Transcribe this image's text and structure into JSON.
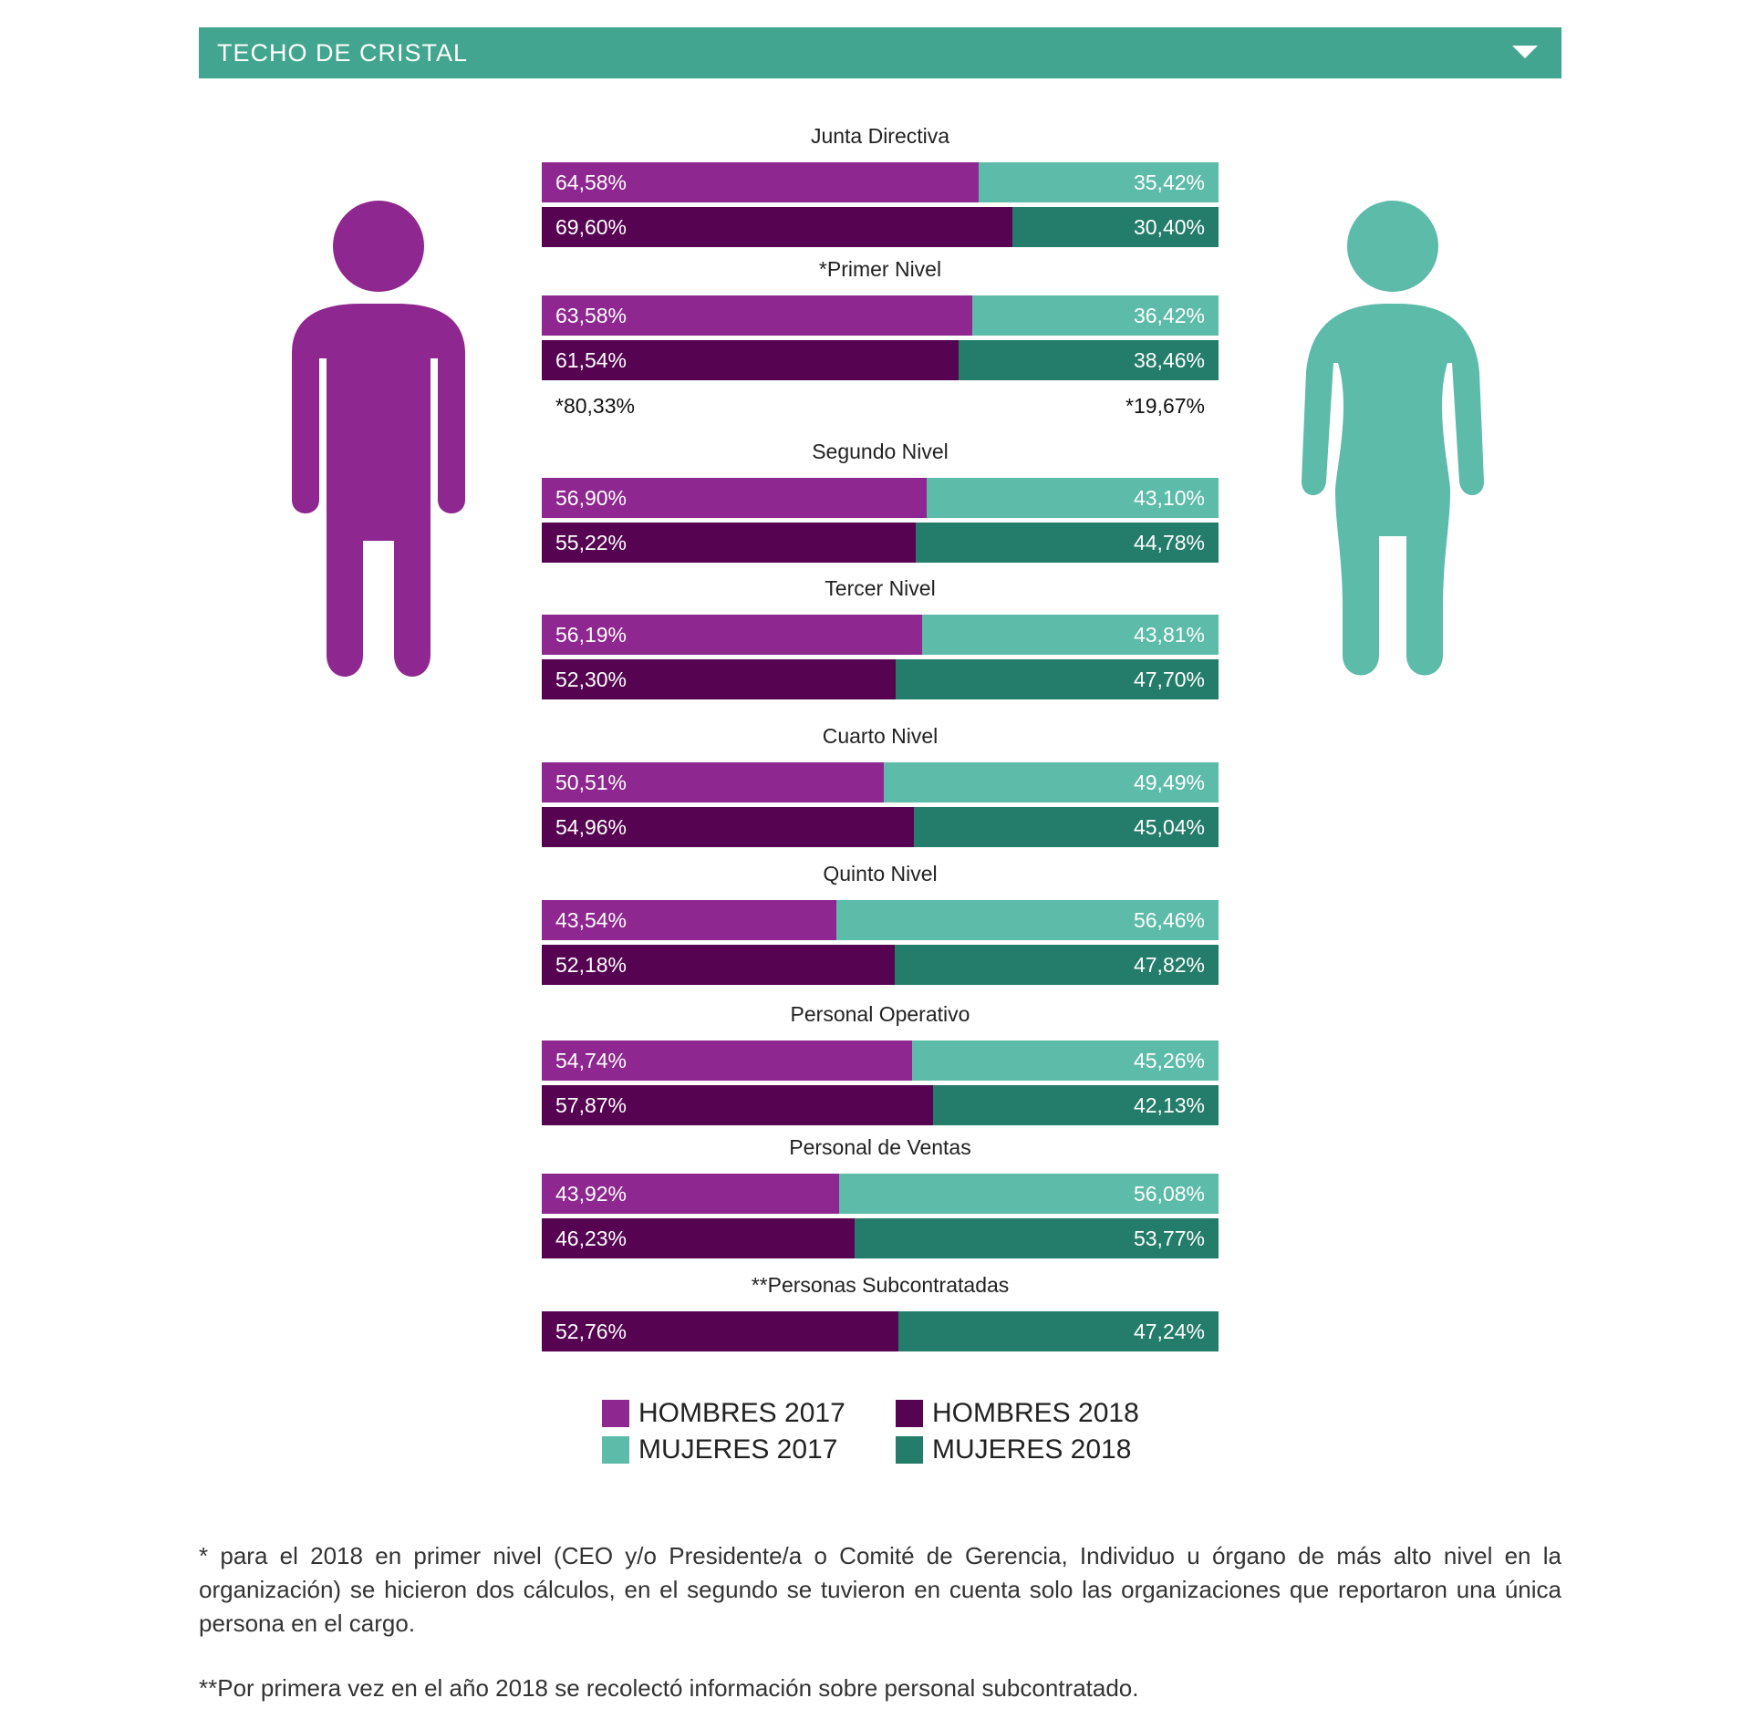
{
  "header": {
    "title": "TECHO DE CRISTAL",
    "toggle_icon": "triangle-down-icon"
  },
  "colors": {
    "hombres_2017": "#8e278f",
    "hombres_2018": "#560452",
    "mujeres_2017": "#5dbba9",
    "mujeres_2018": "#237d6a",
    "header_bg": "#42a58f"
  },
  "figures": {
    "male_icon": "man-figure-icon",
    "female_icon": "woman-figure-icon"
  },
  "chart_data": {
    "type": "bar",
    "orientation": "horizontal-stacked-100",
    "categories": [
      "Junta Directiva",
      "*Primer Nivel",
      "Segundo Nivel",
      "Tercer Nivel",
      "Cuarto Nivel",
      "Quinto Nivel",
      "Personal Operativo",
      "Personal de Ventas",
      "**Personas Subcontratadas"
    ],
    "groups": [
      {
        "title": "Junta Directiva",
        "bars": [
          {
            "year": "2017",
            "hombres": 64.58,
            "mujeres": 35.42,
            "hombres_label": "64,58%",
            "mujeres_label": "35,42%"
          },
          {
            "year": "2018",
            "hombres": 69.6,
            "mujeres": 30.4,
            "hombres_label": "69,60%",
            "mujeres_label": "30,40%"
          }
        ]
      },
      {
        "title": "*Primer Nivel",
        "bars": [
          {
            "year": "2017",
            "hombres": 63.58,
            "mujeres": 36.42,
            "hombres_label": "63,58%",
            "mujeres_label": "36,42%"
          },
          {
            "year": "2018",
            "hombres": 61.54,
            "mujeres": 38.46,
            "hombres_label": "61,54%",
            "mujeres_label": "38,46%"
          }
        ],
        "note": {
          "hombres": "*80,33%",
          "mujeres": "*19,67%"
        }
      },
      {
        "title": "Segundo Nivel",
        "bars": [
          {
            "year": "2017",
            "hombres": 56.9,
            "mujeres": 43.1,
            "hombres_label": "56,90%",
            "mujeres_label": "43,10%"
          },
          {
            "year": "2018",
            "hombres": 55.22,
            "mujeres": 44.78,
            "hombres_label": "55,22%",
            "mujeres_label": "44,78%"
          }
        ]
      },
      {
        "title": "Tercer Nivel",
        "bars": [
          {
            "year": "2017",
            "hombres": 56.19,
            "mujeres": 43.81,
            "hombres_label": "56,19%",
            "mujeres_label": "43,81%"
          },
          {
            "year": "2018",
            "hombres": 52.3,
            "mujeres": 47.7,
            "hombres_label": "52,30%",
            "mujeres_label": "47,70%"
          }
        ]
      },
      {
        "title": "Cuarto Nivel",
        "bars": [
          {
            "year": "2017",
            "hombres": 50.51,
            "mujeres": 49.49,
            "hombres_label": "50,51%",
            "mujeres_label": "49,49%"
          },
          {
            "year": "2018",
            "hombres": 54.96,
            "mujeres": 45.04,
            "hombres_label": "54,96%",
            "mujeres_label": "45,04%"
          }
        ]
      },
      {
        "title": "Quinto Nivel",
        "bars": [
          {
            "year": "2017",
            "hombres": 43.54,
            "mujeres": 56.46,
            "hombres_label": "43,54%",
            "mujeres_label": "56,46%"
          },
          {
            "year": "2018",
            "hombres": 52.18,
            "mujeres": 47.82,
            "hombres_label": "52,18%",
            "mujeres_label": "47,82%"
          }
        ]
      },
      {
        "title": "Personal Operativo",
        "bars": [
          {
            "year": "2017",
            "hombres": 54.74,
            "mujeres": 45.26,
            "hombres_label": "54,74%",
            "mujeres_label": "45,26%"
          },
          {
            "year": "2018",
            "hombres": 57.87,
            "mujeres": 42.13,
            "hombres_label": "57,87%",
            "mujeres_label": "42,13%"
          }
        ]
      },
      {
        "title": "Personal de Ventas",
        "bars": [
          {
            "year": "2017",
            "hombres": 43.92,
            "mujeres": 56.08,
            "hombres_label": "43,92%",
            "mujeres_label": "56,08%"
          },
          {
            "year": "2018",
            "hombres": 46.23,
            "mujeres": 53.77,
            "hombres_label": "46,23%",
            "mujeres_label": "53,77%"
          }
        ]
      },
      {
        "title": "**Personas Subcontratadas",
        "bars": [
          {
            "year": "2018",
            "hombres": 52.76,
            "mujeres": 47.24,
            "hombres_label": "52,76%",
            "mujeres_label": "47,24%"
          }
        ]
      }
    ],
    "legend": [
      {
        "label": "HOMBRES 2017",
        "series": "hombres_2017"
      },
      {
        "label": "HOMBRES 2018",
        "series": "hombres_2018"
      },
      {
        "label": "MUJERES 2017",
        "series": "mujeres_2017"
      },
      {
        "label": "MUJERES 2018",
        "series": "mujeres_2018"
      }
    ],
    "legend_placement": "bottom",
    "xlim": [
      0,
      100
    ],
    "grid": false
  },
  "footnotes": {
    "note1": "* para el 2018 en primer nivel (CEO y/o Presidente/a o Comité de Gerencia, Individuo u órgano de más alto nivel en la organización) se hicieron dos cálculos, en el segundo se tuvieron en cuenta solo las organizaciones que reportaron una única persona en el cargo.",
    "note2": "**Por primera vez en el año 2018 se recolectó información sobre personal subcontratado."
  }
}
